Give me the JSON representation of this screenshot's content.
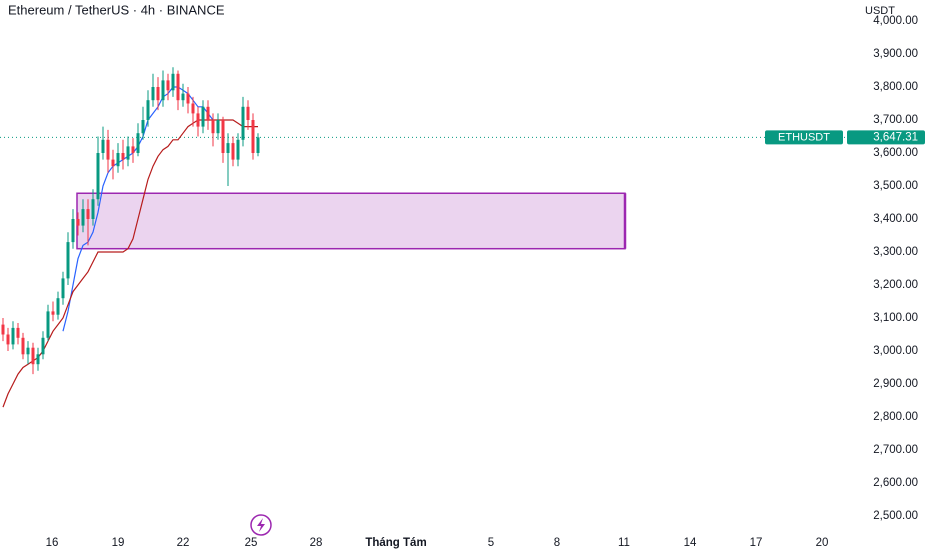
{
  "chart_data": {
    "type": "candlestick",
    "title": "Ethereum / TetherUS · 4h · BINANCE",
    "y_axis_label": "USDT",
    "up_color": "#089981",
    "down_color": "#f23645",
    "ylim": [
      2500,
      4000
    ],
    "yticks": [
      {
        "value": 2500,
        "label": "2,500.00"
      },
      {
        "value": 2600,
        "label": "2,600.00"
      },
      {
        "value": 2700,
        "label": "2,700.00"
      },
      {
        "value": 2800,
        "label": "2,800.00"
      },
      {
        "value": 2900,
        "label": "2,900.00"
      },
      {
        "value": 3000,
        "label": "3,000.00"
      },
      {
        "value": 3100,
        "label": "3,100.00"
      },
      {
        "value": 3200,
        "label": "3,200.00"
      },
      {
        "value": 3300,
        "label": "3,300.00"
      },
      {
        "value": 3400,
        "label": "3,400.00"
      },
      {
        "value": 3500,
        "label": "3,500.00"
      },
      {
        "value": 3600,
        "label": "3,600.00"
      },
      {
        "value": 3700,
        "label": "3,700.00"
      },
      {
        "value": 3800,
        "label": "3,800.00"
      },
      {
        "value": 3900,
        "label": "3,900.00"
      },
      {
        "value": 4000,
        "label": "4,000.00"
      }
    ],
    "grid": false,
    "xtick_labels": [
      "16",
      "19",
      "22",
      "25",
      "28",
      "Tháng Tám",
      "5",
      "8",
      "11",
      "14",
      "17",
      "20"
    ],
    "open": [
      3080,
      3050,
      3020,
      3070,
      3040,
      2990,
      3010,
      2960,
      2990,
      3040,
      3120,
      3110,
      3160,
      3220,
      3330,
      3400,
      3380,
      3430,
      3400,
      3460,
      3600,
      3640,
      3580,
      3560,
      3600,
      3580,
      3620,
      3600,
      3660,
      3700,
      3760,
      3800,
      3760,
      3820,
      3790,
      3840,
      3760,
      3780,
      3750,
      3720,
      3680,
      3740,
      3700,
      3660,
      3700,
      3600,
      3630,
      3580,
      3640,
      3740,
      3700,
      3600
    ],
    "high": [
      3100,
      3070,
      3090,
      3085,
      3055,
      3030,
      3025,
      3010,
      3060,
      3140,
      3150,
      3180,
      3240,
      3360,
      3430,
      3420,
      3460,
      3460,
      3490,
      3650,
      3680,
      3670,
      3610,
      3630,
      3640,
      3650,
      3645,
      3690,
      3740,
      3790,
      3840,
      3830,
      3850,
      3840,
      3860,
      3850,
      3810,
      3800,
      3770,
      3740,
      3760,
      3760,
      3720,
      3720,
      3710,
      3660,
      3650,
      3660,
      3770,
      3760,
      3720,
      3660
    ],
    "low": [
      3030,
      3000,
      3005,
      3020,
      2975,
      2960,
      2930,
      2940,
      2975,
      3030,
      3090,
      3095,
      3140,
      3200,
      3310,
      3350,
      3360,
      3320,
      3380,
      3440,
      3580,
      3540,
      3520,
      3540,
      3550,
      3560,
      3570,
      3590,
      3640,
      3680,
      3740,
      3730,
      3740,
      3760,
      3770,
      3730,
      3740,
      3720,
      3680,
      3650,
      3660,
      3670,
      3620,
      3640,
      3570,
      3500,
      3560,
      3560,
      3620,
      3670,
      3580,
      3590
    ],
    "close": [
      3050,
      3020,
      3070,
      3040,
      2990,
      3010,
      2960,
      2990,
      3040,
      3120,
      3110,
      3160,
      3220,
      3330,
      3400,
      3380,
      3430,
      3400,
      3460,
      3600,
      3640,
      3580,
      3560,
      3600,
      3580,
      3620,
      3600,
      3660,
      3700,
      3760,
      3800,
      3760,
      3820,
      3790,
      3840,
      3760,
      3780,
      3750,
      3720,
      3680,
      3740,
      3700,
      3660,
      3700,
      3600,
      3630,
      3580,
      3640,
      3740,
      3700,
      3600,
      3647.31
    ],
    "lines": [
      {
        "color": "#2962ff",
        "values": [
          null,
          null,
          null,
          null,
          null,
          null,
          null,
          null,
          null,
          null,
          null,
          null,
          3060,
          3120,
          3200,
          3280,
          3320,
          3330,
          3360,
          3420,
          3500,
          3540,
          3560,
          3570,
          3580,
          3590,
          3600,
          3620,
          3650,
          3700,
          3720,
          3740,
          3770,
          3780,
          3800,
          3800,
          3790,
          3780,
          3760,
          3740,
          3740,
          3720,
          3700,
          null,
          null,
          null,
          null,
          null,
          null,
          null,
          null,
          null
        ]
      },
      {
        "color": "#b71c1c",
        "values": [
          2830,
          2870,
          2900,
          2930,
          2950,
          2960,
          2970,
          2980,
          3000,
          3030,
          3060,
          3080,
          3100,
          3140,
          3180,
          3200,
          3220,
          3240,
          3270,
          3300,
          3300,
          3300,
          3300,
          3300,
          3300,
          3310,
          3340,
          3400,
          3460,
          3520,
          3560,
          3590,
          3610,
          3620,
          3640,
          3640,
          3660,
          3680,
          3690,
          3700,
          3700,
          3700,
          3700,
          3700,
          3700,
          3700,
          3700,
          3690,
          3680,
          3680,
          3680,
          3680
        ]
      }
    ],
    "zone": {
      "low": 3310,
      "high": 3478,
      "color": "#9c27b0"
    },
    "symbol": "ETHUSDT",
    "last_price": {
      "value": 3647.31,
      "label": "3,647.31"
    }
  }
}
